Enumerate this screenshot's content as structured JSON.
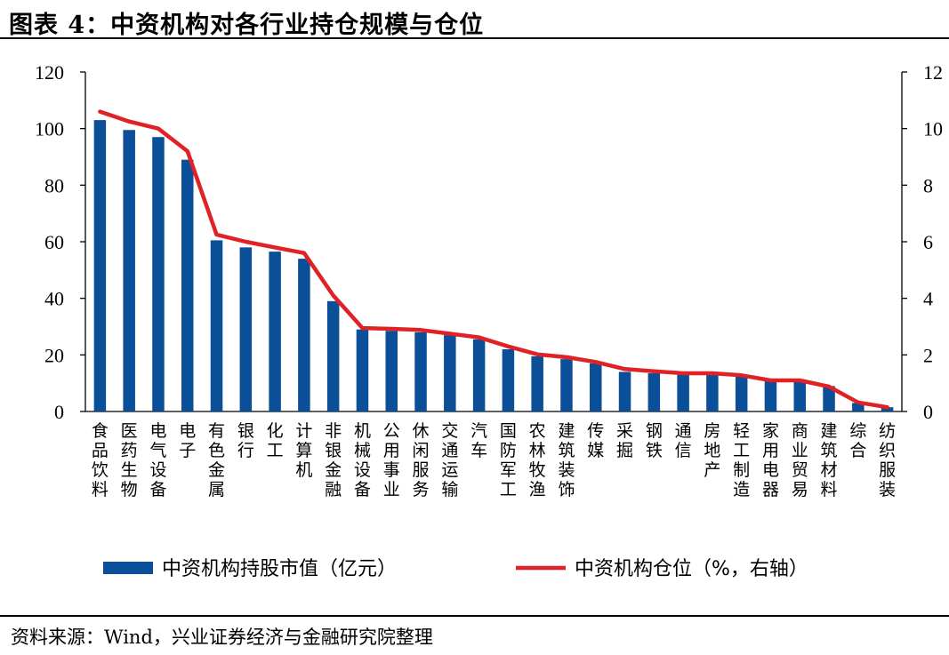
{
  "title": "图表 4：中资机构对各行业持仓规模与仓位",
  "source": "资料来源：Wind，兴业证券经济与金融研究院整理",
  "colors": {
    "bar": "#0b4f98",
    "line": "#e02125",
    "axis": "#000000"
  },
  "chart_data": {
    "type": "bar",
    "categories": [
      "食品饮料",
      "医药生物",
      "电气设备",
      "电子",
      "有色金属",
      "银行",
      "化工",
      "计算机",
      "非银金融",
      "机械设备",
      "公用事业",
      "休闲服务",
      "交通运输",
      "汽车",
      "国防军工",
      "农林牧渔",
      "建筑装饰",
      "传媒",
      "采掘",
      "钢铁",
      "通信",
      "房地产",
      "轻工制造",
      "家用电器",
      "商业贸易",
      "建筑材料",
      "综合",
      "纺织服装"
    ],
    "series": [
      {
        "name": "中资机构持股市值（亿元）",
        "type": "bar",
        "axis": "left",
        "values": [
          103,
          99.5,
          97,
          89,
          60.5,
          58,
          56.5,
          54,
          39,
          29,
          28.5,
          28,
          27,
          25.5,
          22,
          19.5,
          18.5,
          17,
          14,
          13.5,
          13,
          13,
          12.5,
          11,
          11,
          9,
          3,
          1.5
        ]
      },
      {
        "name": "中资机构仓位（%，右轴）",
        "type": "line",
        "axis": "right",
        "values": [
          10.6,
          10.25,
          10.0,
          9.2,
          6.25,
          6.0,
          5.8,
          5.6,
          4.1,
          2.95,
          2.92,
          2.88,
          2.75,
          2.62,
          2.3,
          2.02,
          1.92,
          1.75,
          1.5,
          1.42,
          1.35,
          1.35,
          1.28,
          1.1,
          1.1,
          0.88,
          0.32,
          0.15
        ]
      }
    ],
    "y_left": {
      "lim": [
        0,
        120
      ],
      "ticks": [
        "0",
        "20",
        "40",
        "60",
        "80",
        "100",
        "120"
      ]
    },
    "y_right": {
      "lim": [
        0,
        12
      ],
      "ticks": [
        "0",
        "2",
        "4",
        "6",
        "8",
        "10",
        "12"
      ]
    },
    "legend_position": "bottom",
    "grid": false
  }
}
